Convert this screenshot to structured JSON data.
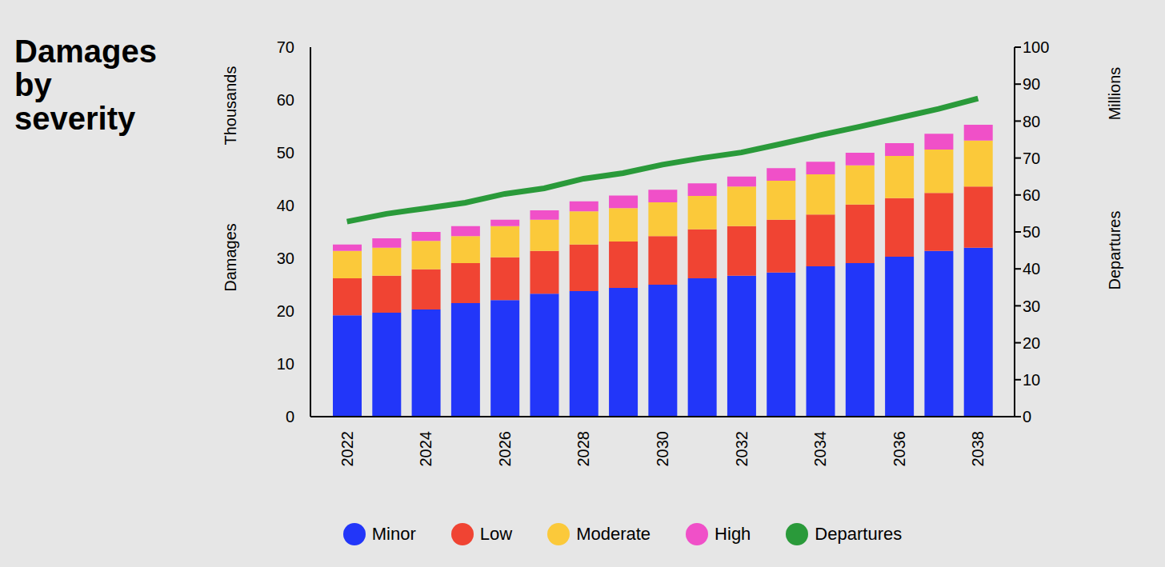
{
  "chart_data": {
    "type": "bar",
    "title": "Damages by severity",
    "ylabel": "Damages",
    "yunit": "Thousands",
    "y2label": "Departures",
    "y2unit": "Millions",
    "categories": [
      "2022",
      null,
      "2024",
      null,
      "2026",
      null,
      "2028",
      null,
      "2030",
      null,
      "2032",
      null,
      "2034",
      null,
      "2036",
      null,
      "2038"
    ],
    "stacked": true,
    "legend": "bottom",
    "grid": false,
    "ylim": [
      0,
      70
    ],
    "yticks": [
      0,
      10,
      20,
      30,
      40,
      50,
      60,
      70
    ],
    "y2lim": [
      0,
      100
    ],
    "y2ticks": [
      0,
      10,
      20,
      30,
      40,
      50,
      60,
      70,
      80,
      90,
      100
    ],
    "series": [
      {
        "name": "Minor",
        "color": "#2236f9",
        "type": "bar",
        "values": [
          19.2,
          19.7,
          20.3,
          21.5,
          22.1,
          23.3,
          23.8,
          24.4,
          25.0,
          26.2,
          26.7,
          27.3,
          28.5,
          29.1,
          30.3,
          31.4,
          32.0
        ]
      },
      {
        "name": "Low",
        "color": "#f04433",
        "type": "bar",
        "values": [
          7.0,
          7.0,
          7.6,
          7.6,
          8.1,
          8.1,
          8.8,
          8.8,
          9.2,
          9.3,
          9.4,
          10.0,
          9.8,
          11.1,
          11.1,
          11.0,
          11.6
        ]
      },
      {
        "name": "Moderate",
        "color": "#fbc93a",
        "type": "bar",
        "values": [
          5.2,
          5.3,
          5.4,
          5.1,
          5.9,
          5.9,
          6.3,
          6.3,
          6.4,
          6.3,
          7.5,
          7.4,
          7.6,
          7.4,
          8.0,
          8.2,
          8.7
        ]
      },
      {
        "name": "High",
        "color": "#f050c8",
        "type": "bar",
        "values": [
          1.2,
          1.8,
          1.7,
          1.9,
          1.2,
          1.8,
          1.9,
          2.4,
          2.4,
          2.4,
          1.9,
          2.4,
          2.4,
          2.4,
          2.4,
          3.0,
          3.0
        ]
      },
      {
        "name": "Departures",
        "color": "#2a9a3a",
        "type": "line",
        "axis": "y2",
        "values": [
          52.8,
          54.9,
          56.4,
          57.9,
          60.3,
          61.8,
          64.4,
          65.9,
          68.2,
          70.0,
          71.5,
          73.8,
          76.2,
          78.5,
          80.9,
          83.3,
          86.1
        ]
      }
    ]
  }
}
